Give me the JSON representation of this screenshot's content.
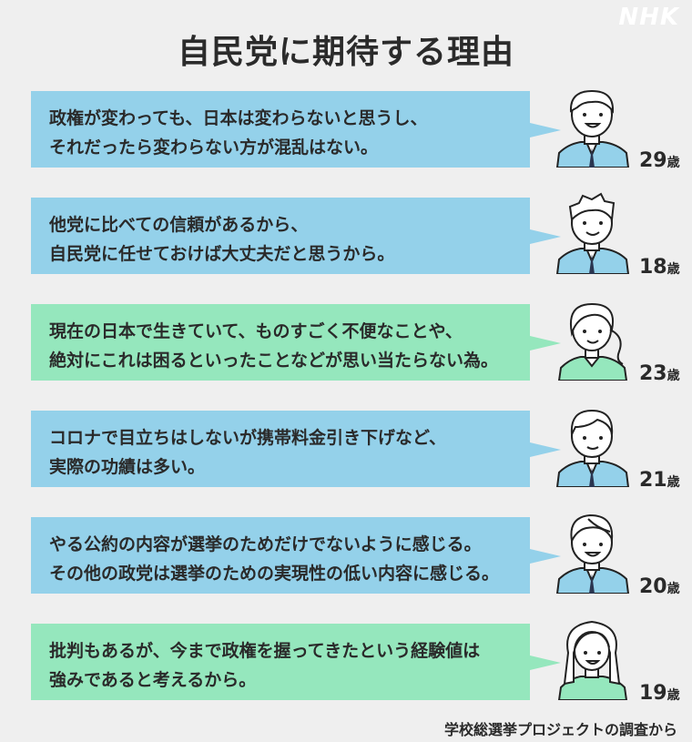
{
  "brand": "NHK",
  "title": "自民党に期待する理由",
  "source": "学校総選挙プロジェクトの調査から",
  "age_unit": "歳",
  "comments": [
    {
      "lines": [
        "政権が変わっても、日本は変わらないと思うし、",
        "それだったら変わらない方が混乱はない。"
      ],
      "age": "29",
      "color": "blue",
      "avatar": "male-short-hair-icon"
    },
    {
      "lines": [
        "他党に比べての信頼があるから、",
        "自民党に任せておけば大丈夫だと思うから。"
      ],
      "age": "18",
      "color": "blue",
      "avatar": "male-spiky-hair-icon"
    },
    {
      "lines": [
        "現在の日本で生きていて、ものすごく不便なことや、",
        "絶対にこれは困るといったことなどが思い当たらない為。"
      ],
      "age": "23",
      "color": "green",
      "avatar": "female-ponytail-icon"
    },
    {
      "lines": [
        "コロナで目立ちはしないが携帯料金引き下げなど、",
        "実際の功績は多い。"
      ],
      "age": "21",
      "color": "blue",
      "avatar": "male-parted-hair-icon"
    },
    {
      "lines": [
        "やる公約の内容が選挙のためだけでないように感じる。",
        "その他の政党は選挙のための実現性の低い内容に感じる。"
      ],
      "age": "20",
      "color": "blue",
      "avatar": "male-side-part-icon"
    },
    {
      "lines": [
        "批判もあるが、今まで政権を握ってきたという経験値は",
        "強みであると考えるから。"
      ],
      "age": "19",
      "color": "green",
      "avatar": "female-long-hair-icon"
    }
  ],
  "colors": {
    "blue": "#94d1ea",
    "green": "#95e7bd",
    "background": "#efefef",
    "text": "#2a2a2a"
  }
}
